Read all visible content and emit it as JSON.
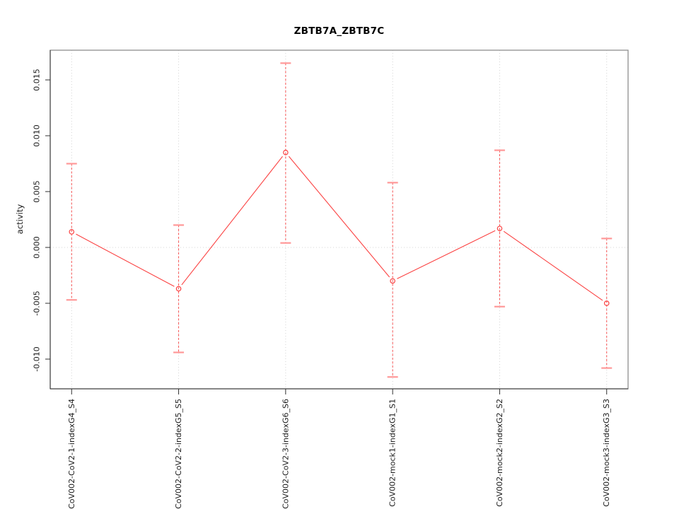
{
  "chart_data": {
    "type": "line",
    "title": "ZBTB7A_ZBTB7C",
    "ylabel": "activity",
    "xlabel": "",
    "categories": [
      "CoV002-CoV2-1-indexG4_S4",
      "CoV002-CoV2-2-indexG5_S5",
      "CoV002-CoV2-3-indexG6_S6",
      "CoV002-mock1-indexG1_S1",
      "CoV002-mock2-indexG2_S2",
      "CoV002-mock3-indexG3_S3"
    ],
    "series": [
      {
        "name": "activity",
        "values": [
          0.0014,
          -0.0037,
          0.0085,
          -0.003,
          0.0017,
          -0.005
        ],
        "upper": [
          0.0075,
          0.002,
          0.0165,
          0.0058,
          0.0087,
          0.0008
        ],
        "lower": [
          -0.0047,
          -0.0094,
          0.0004,
          -0.0116,
          -0.0053,
          -0.0108
        ]
      }
    ],
    "yticks": [
      0.015,
      0.01,
      0.005,
      0.0,
      -0.005,
      -0.01
    ],
    "ytick_labels": [
      "0.015",
      "0.010",
      "0.005",
      "0.000",
      "-0.005",
      "-0.010"
    ],
    "ylim": [
      -0.01266,
      0.01766
    ],
    "grid": "dotted vertical gridline at each category; dotted horizontal line at y=0",
    "legend": "none",
    "marker": "open-circle",
    "error_bars": "dashed vertical with capped ends",
    "colors": {
      "line": "#fb4343",
      "error_dash": "#f85353",
      "error_cap": "#ff9898",
      "grid": "#d4d4d4",
      "box": "#8f8f8f",
      "axis_tick": "#2f2f2f",
      "text": "#1c1c1c"
    }
  }
}
